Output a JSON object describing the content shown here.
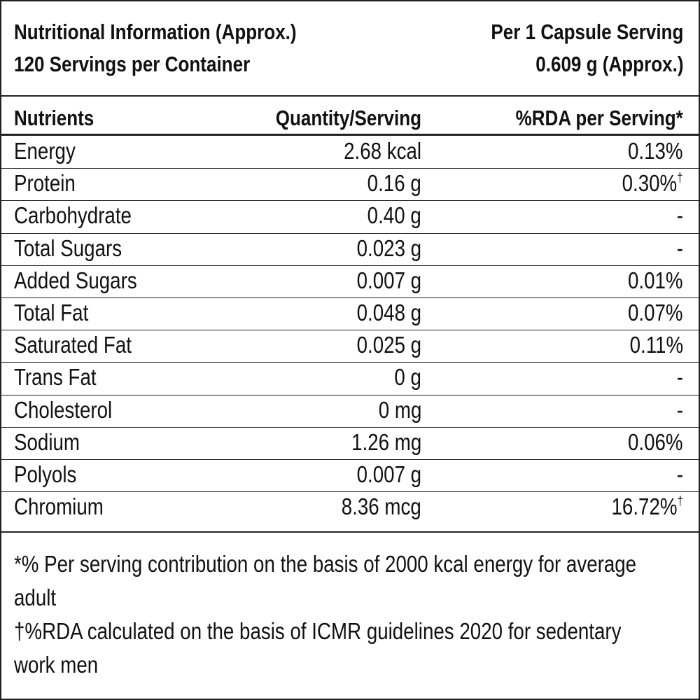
{
  "header": {
    "title": "Nutritional Information (Approx.)",
    "servings": "120 Servings per Container",
    "serving_label": "Per 1 Capsule Serving",
    "serving_size": "0.609 g (Approx.)"
  },
  "table": {
    "columns": [
      "Nutrients",
      "Quantity/Serving",
      "%RDA per Serving*"
    ],
    "rows": [
      {
        "nutrient": "Energy",
        "quantity": "2.68 kcal",
        "rda": "0.13%"
      },
      {
        "nutrient": "Protein",
        "quantity": "0.16 g",
        "rda": "0.30%",
        "note": "†"
      },
      {
        "nutrient": "Carbohydrate",
        "quantity": "0.40 g",
        "rda": "-"
      },
      {
        "nutrient": "Total Sugars",
        "quantity": "0.023 g",
        "rda": "-"
      },
      {
        "nutrient": "Added Sugars",
        "quantity": "0.007 g",
        "rda": "0.01%"
      },
      {
        "nutrient": "Total Fat",
        "quantity": "0.048 g",
        "rda": "0.07%"
      },
      {
        "nutrient": "Saturated Fat",
        "quantity": "0.025 g",
        "rda": "0.11%"
      },
      {
        "nutrient": "Trans Fat",
        "quantity": "0 g",
        "rda": "-"
      },
      {
        "nutrient": "Cholesterol",
        "quantity": "0 mg",
        "rda": "-"
      },
      {
        "nutrient": "Sodium",
        "quantity": "1.26 mg",
        "rda": "0.06%"
      },
      {
        "nutrient": "Polyols",
        "quantity": "0.007 g",
        "rda": "-"
      },
      {
        "nutrient": "Chromium",
        "quantity": "8.36 mcg",
        "rda": "16.72%",
        "note": "†"
      }
    ]
  },
  "footnotes": [
    "*% Per serving contribution on the basis of 2000 kcal energy for average adult",
    "†%RDA calculated on the basis of ICMR guidelines 2020 for sedentary work men"
  ]
}
